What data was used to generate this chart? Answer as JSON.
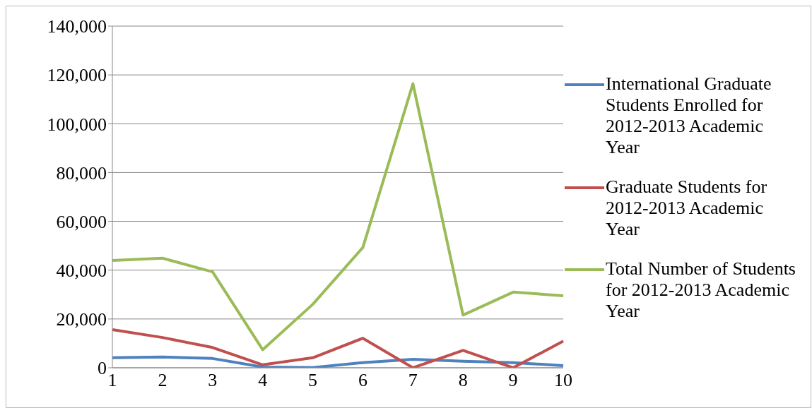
{
  "chart_data": {
    "type": "line",
    "categories": [
      "1",
      "2",
      "3",
      "4",
      "5",
      "6",
      "7",
      "8",
      "9",
      "10"
    ],
    "series": [
      {
        "name": "International Graduate Students Enrolled for 2012-2013 Academic Year",
        "color": "#4f81bd",
        "values": [
          4100,
          4400,
          3800,
          300,
          100,
          2100,
          3500,
          2700,
          2100,
          900
        ]
      },
      {
        "name": "Graduate Students for 2012-2013 Academic Year",
        "color": "#c0504d",
        "values": [
          15600,
          12400,
          8300,
          1200,
          4100,
          12100,
          0,
          7100,
          0,
          10900
        ]
      },
      {
        "name": "Total Number of Students for 2012-2013 Academic Year",
        "color": "#9bbb59",
        "values": [
          44000,
          44900,
          39300,
          7400,
          26000,
          49300,
          116400,
          21600,
          31000,
          29500
        ]
      }
    ],
    "ylim": [
      0,
      140000
    ],
    "yticks": [
      {
        "value": 0,
        "label": "0"
      },
      {
        "value": 20000,
        "label": "20,000"
      },
      {
        "value": 40000,
        "label": "40,000"
      },
      {
        "value": 60000,
        "label": "60,000"
      },
      {
        "value": 80000,
        "label": "80,000"
      },
      {
        "value": 100000,
        "label": "100,000"
      },
      {
        "value": 120000,
        "label": "120,000"
      },
      {
        "value": 140000,
        "label": "140,000"
      }
    ],
    "grid": "y",
    "legend": "right",
    "marker": "none",
    "line_style": "solid"
  }
}
